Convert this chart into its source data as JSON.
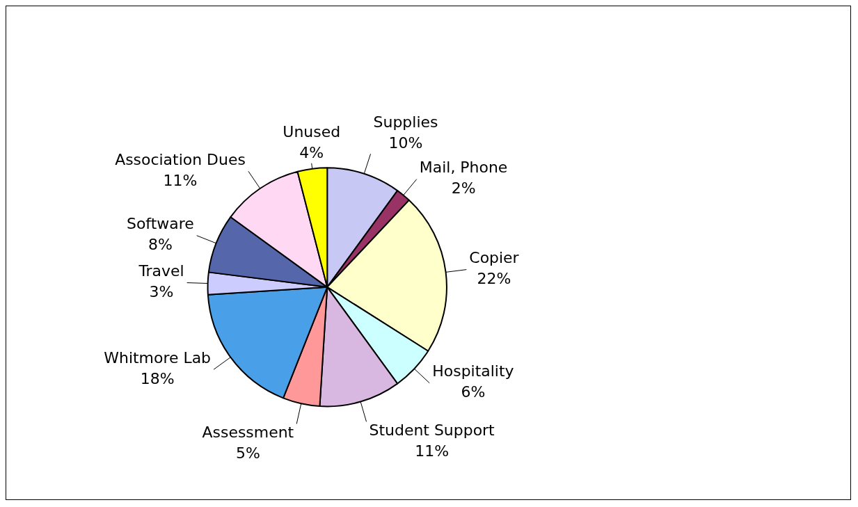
{
  "chart_data": {
    "type": "pie",
    "categories": [
      "Supplies",
      "Mail, Phone",
      "Copier",
      "Hospitality",
      "Student Support",
      "Assessment",
      "Whitmore Lab",
      "Travel",
      "Software",
      "Association Dues",
      "Unused"
    ],
    "values": [
      10,
      2,
      22,
      6,
      11,
      5,
      18,
      3,
      8,
      11,
      4
    ],
    "value_labels": [
      "10%",
      "2%",
      "22%",
      "6%",
      "11%",
      "5%",
      "18%",
      "3%",
      "8%",
      "11%",
      "4%"
    ],
    "colors": [
      "#c8c8f4",
      "#993366",
      "#ffffcc",
      "#ccffff",
      "#d8b8e0",
      "#ff9999",
      "#4aa0e8",
      "#ccccff",
      "#5566aa",
      "#ffd8f4",
      "#ffff00"
    ],
    "legend": false
  }
}
